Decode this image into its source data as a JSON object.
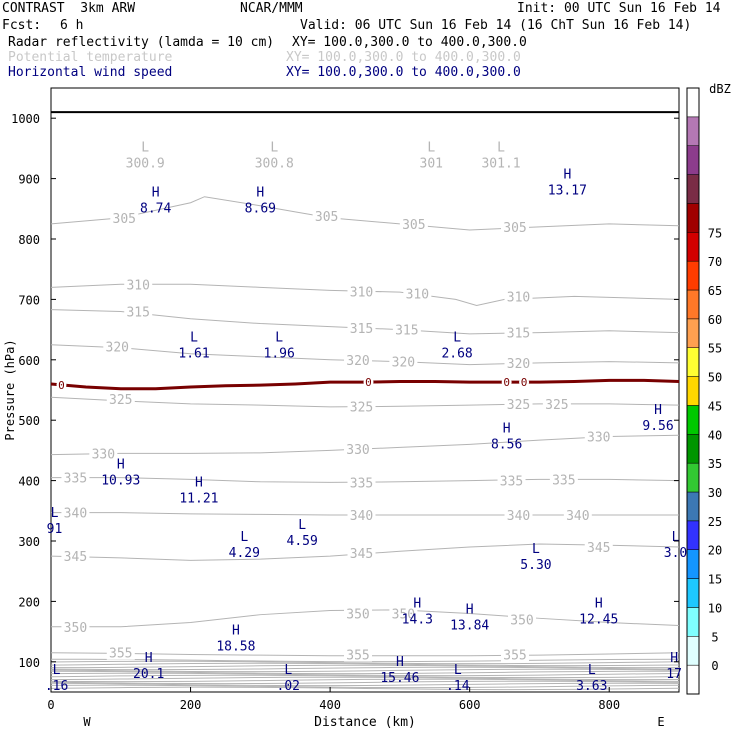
{
  "header": {
    "model": "CONTRAST  3km ARW",
    "org": "NCAR/MMM",
    "init": "Init: 00 UTC Sun 16 Feb 14",
    "fcst_label": "Fcst:",
    "fcst_value": "6 h",
    "valid": "Valid: 06 UTC Sun 16 Feb 14 (16 ChT Sun 16 Feb 14)",
    "fields": [
      {
        "name": "Radar reflectivity (lamda = 10 cm)",
        "xy": "XY= 100.0,300.0 to 400.0,300.0",
        "color": "#000000"
      },
      {
        "name": "Potential temperature",
        "xy": "XY= 100.0,300.0 to 400.0,300.0",
        "color": "#c8c8c8"
      },
      {
        "name": "Horizontal wind speed",
        "xy": "XY= 100.0,300.0 to 400.0,300.0",
        "color": "#000080"
      }
    ]
  },
  "chart_data": {
    "type": "cross-section",
    "xlabel": "Distance (km)",
    "ylabel": "Pressure (hPa)",
    "xlim": [
      0,
      900
    ],
    "ylim": [
      1050,
      50
    ],
    "x_ticks": [
      0,
      200,
      400,
      600,
      800
    ],
    "y_ticks": [
      100,
      200,
      300,
      400,
      500,
      600,
      700,
      800,
      900,
      1000
    ],
    "left_end": "W",
    "right_end": "E",
    "theta_contours": [
      {
        "level": 305,
        "x": [
          0,
          100,
          200,
          220,
          300,
          350,
          400,
          500,
          600,
          700,
          800,
          900
        ],
        "p": [
          825,
          835,
          860,
          870,
          855,
          845,
          835,
          825,
          815,
          820,
          825,
          822
        ]
      },
      {
        "level": 310,
        "x": [
          0,
          100,
          200,
          300,
          400,
          500,
          580,
          610,
          650,
          750,
          900
        ],
        "p": [
          720,
          725,
          725,
          720,
          715,
          712,
          700,
          690,
          700,
          705,
          700
        ]
      },
      {
        "level": 315,
        "x": [
          0,
          100,
          200,
          300,
          400,
          500,
          600,
          700,
          800,
          900
        ],
        "p": [
          683,
          680,
          668,
          660,
          655,
          650,
          643,
          645,
          648,
          645
        ]
      },
      {
        "level": 320,
        "x": [
          0,
          100,
          200,
          300,
          400,
          500,
          600,
          700,
          800,
          900
        ],
        "p": [
          625,
          620,
          610,
          605,
          600,
          597,
          592,
          595,
          597,
          595
        ]
      },
      {
        "level": 325,
        "x": [
          0,
          100,
          200,
          300,
          400,
          500,
          600,
          700,
          800,
          900
        ],
        "p": [
          538,
          532,
          527,
          525,
          522,
          523,
          525,
          527,
          527,
          525
        ]
      },
      {
        "level": 330,
        "x": [
          0,
          100,
          200,
          300,
          400,
          500,
          600,
          700,
          800,
          900
        ],
        "p": [
          443,
          445,
          445,
          446,
          450,
          455,
          460,
          467,
          473,
          475
        ]
      },
      {
        "level": 335,
        "x": [
          0,
          100,
          200,
          300,
          400,
          500,
          600,
          700,
          800,
          900
        ],
        "p": [
          405,
          405,
          402,
          398,
          397,
          398,
          400,
          402,
          402,
          400
        ]
      },
      {
        "level": 340,
        "x": [
          0,
          100,
          200,
          300,
          400,
          500,
          600,
          700,
          800,
          900
        ],
        "p": [
          347,
          347,
          345,
          344,
          343,
          343,
          343,
          343,
          343,
          343
        ]
      },
      {
        "level": 345,
        "x": [
          0,
          100,
          200,
          300,
          400,
          500,
          600,
          700,
          800,
          900
        ],
        "p": [
          275,
          272,
          268,
          270,
          275,
          283,
          290,
          295,
          293,
          290
        ]
      },
      {
        "level": 350,
        "x": [
          0,
          100,
          200,
          300,
          400,
          500,
          600,
          700,
          800,
          900
        ],
        "p": [
          158,
          158,
          165,
          178,
          185,
          186,
          180,
          172,
          165,
          160
        ]
      },
      {
        "level": 355,
        "x": [
          0,
          100,
          200,
          300,
          400,
          500,
          600,
          700,
          800,
          900
        ],
        "p": [
          115,
          114,
          112,
          111,
          110,
          110,
          110,
          111,
          113,
          115
        ]
      }
    ],
    "theta_labels": [
      {
        "text": "355",
        "x": 100,
        "p": 115
      },
      {
        "text": "355",
        "x": 440,
        "p": 112
      },
      {
        "text": "355",
        "x": 665,
        "p": 112
      },
      {
        "text": "350",
        "x": 35,
        "p": 158
      },
      {
        "text": "350",
        "x": 440,
        "p": 180
      },
      {
        "text": "350",
        "x": 505,
        "p": 180
      },
      {
        "text": "350",
        "x": 675,
        "p": 170
      },
      {
        "text": "345",
        "x": 35,
        "p": 275
      },
      {
        "text": "345",
        "x": 445,
        "p": 280
      },
      {
        "text": "345",
        "x": 785,
        "p": 290
      },
      {
        "text": "340",
        "x": 35,
        "p": 347
      },
      {
        "text": "340",
        "x": 445,
        "p": 343
      },
      {
        "text": "340",
        "x": 670,
        "p": 343
      },
      {
        "text": "340",
        "x": 755,
        "p": 343
      },
      {
        "text": "335",
        "x": 35,
        "p": 405
      },
      {
        "text": "335",
        "x": 445,
        "p": 397
      },
      {
        "text": "335",
        "x": 660,
        "p": 400
      },
      {
        "text": "335",
        "x": 735,
        "p": 402
      },
      {
        "text": "330",
        "x": 75,
        "p": 445
      },
      {
        "text": "330",
        "x": 440,
        "p": 452
      },
      {
        "text": "330",
        "x": 785,
        "p": 473
      },
      {
        "text": "325",
        "x": 100,
        "p": 535
      },
      {
        "text": "325",
        "x": 445,
        "p": 523
      },
      {
        "text": "325",
        "x": 670,
        "p": 527
      },
      {
        "text": "325",
        "x": 725,
        "p": 527
      },
      {
        "text": "320",
        "x": 95,
        "p": 622
      },
      {
        "text": "320",
        "x": 440,
        "p": 600
      },
      {
        "text": "320",
        "x": 505,
        "p": 597
      },
      {
        "text": "320",
        "x": 670,
        "p": 595
      },
      {
        "text": "315",
        "x": 125,
        "p": 680
      },
      {
        "text": "315",
        "x": 445,
        "p": 653
      },
      {
        "text": "315",
        "x": 510,
        "p": 650
      },
      {
        "text": "315",
        "x": 670,
        "p": 645
      },
      {
        "text": "310",
        "x": 125,
        "p": 725
      },
      {
        "text": "310",
        "x": 445,
        "p": 713
      },
      {
        "text": "310",
        "x": 525,
        "p": 710
      },
      {
        "text": "310",
        "x": 670,
        "p": 705
      },
      {
        "text": "305",
        "x": 105,
        "p": 835
      },
      {
        "text": "305",
        "x": 395,
        "p": 838
      },
      {
        "text": "305",
        "x": 520,
        "p": 825
      },
      {
        "text": "305",
        "x": 665,
        "p": 820
      }
    ],
    "wind_extrema": [
      {
        "type": "L",
        "value": ".16",
        "x": 8,
        "p": 80
      },
      {
        "type": "H",
        "value": "20.1",
        "x": 140,
        "p": 100
      },
      {
        "type": "L",
        "value": ".02",
        "x": 340,
        "p": 80
      },
      {
        "type": "H",
        "value": "15.46",
        "x": 500,
        "p": 93
      },
      {
        "type": "L",
        "value": ".14",
        "x": 583,
        "p": 80
      },
      {
        "type": "L",
        "value": "3.63",
        "x": 775,
        "p": 80
      },
      {
        "type": "H",
        "value": "17",
        "x": 893,
        "p": 100
      },
      {
        "type": "H",
        "value": "18.58",
        "x": 265,
        "p": 145
      },
      {
        "type": "H",
        "value": "14.3",
        "x": 525,
        "p": 190
      },
      {
        "type": "H",
        "value": "13.84",
        "x": 600,
        "p": 180
      },
      {
        "type": "H",
        "value": "12.45",
        "x": 785,
        "p": 190
      },
      {
        "type": "L",
        "value": "5.30",
        "x": 695,
        "p": 280
      },
      {
        "type": "L",
        "value": "4.29",
        "x": 277,
        "p": 300
      },
      {
        "type": "L",
        "value": "4.59",
        "x": 360,
        "p": 320
      },
      {
        "type": "L",
        "value": "3.0",
        "x": 895,
        "p": 300
      },
      {
        "type": "L",
        "value": "91",
        "x": 5,
        "p": 340
      },
      {
        "type": "H",
        "value": "11.21",
        "x": 212,
        "p": 390
      },
      {
        "type": "H",
        "value": "10.93",
        "x": 100,
        "p": 420
      },
      {
        "type": "H",
        "value": "8.56",
        "x": 653,
        "p": 480
      },
      {
        "type": "H",
        "value": "9.56",
        "x": 870,
        "p": 510
      },
      {
        "type": "L",
        "value": "1.61",
        "x": 205,
        "p": 630
      },
      {
        "type": "L",
        "value": "1.96",
        "x": 327,
        "p": 630
      },
      {
        "type": "L",
        "value": "2.68",
        "x": 582,
        "p": 630
      },
      {
        "type": "H",
        "value": "8.74",
        "x": 150,
        "p": 870
      },
      {
        "type": "H",
        "value": "8.69",
        "x": 300,
        "p": 870
      },
      {
        "type": "H",
        "value": "13.17",
        "x": 740,
        "p": 900
      }
    ],
    "theta_extrema": [
      {
        "type": "L",
        "value": "300.9",
        "x": 135,
        "p": 945
      },
      {
        "type": "L",
        "value": "300.8",
        "x": 320,
        "p": 945
      },
      {
        "type": "L",
        "value": "301",
        "x": 545,
        "p": 945
      },
      {
        "type": "L",
        "value": "301.1",
        "x": 645,
        "p": 945
      }
    ],
    "zero_isotherm": {
      "label": "0",
      "x": [
        0,
        50,
        100,
        150,
        200,
        250,
        300,
        350,
        400,
        450,
        500,
        550,
        600,
        650,
        700,
        750,
        800,
        850,
        900
      ],
      "p": [
        560,
        555,
        552,
        552,
        555,
        557,
        558,
        560,
        563,
        563,
        564,
        564,
        563,
        563,
        563,
        564,
        566,
        566,
        564
      ],
      "label_x": [
        15,
        455,
        653,
        678
      ]
    },
    "surface_pressure": 1010,
    "colorbar": {
      "units": "dBZ",
      "levels": [
        0,
        5,
        10,
        15,
        20,
        25,
        30,
        35,
        40,
        45,
        50,
        55,
        60,
        65,
        70,
        75
      ],
      "colors": [
        "#ffffff",
        "#e0ffff",
        "#7fffff",
        "#1ec8ff",
        "#1496ff",
        "#3232ff",
        "#3c78b4",
        "#32c832",
        "#009600",
        "#00c800",
        "#ffd700",
        "#ffff32",
        "#ffa050",
        "#ff7828",
        "#ff3c00",
        "#d20000",
        "#a00000",
        "#7a2c46",
        "#8c3c8c",
        "#b478b4",
        "#ffffff"
      ]
    }
  }
}
